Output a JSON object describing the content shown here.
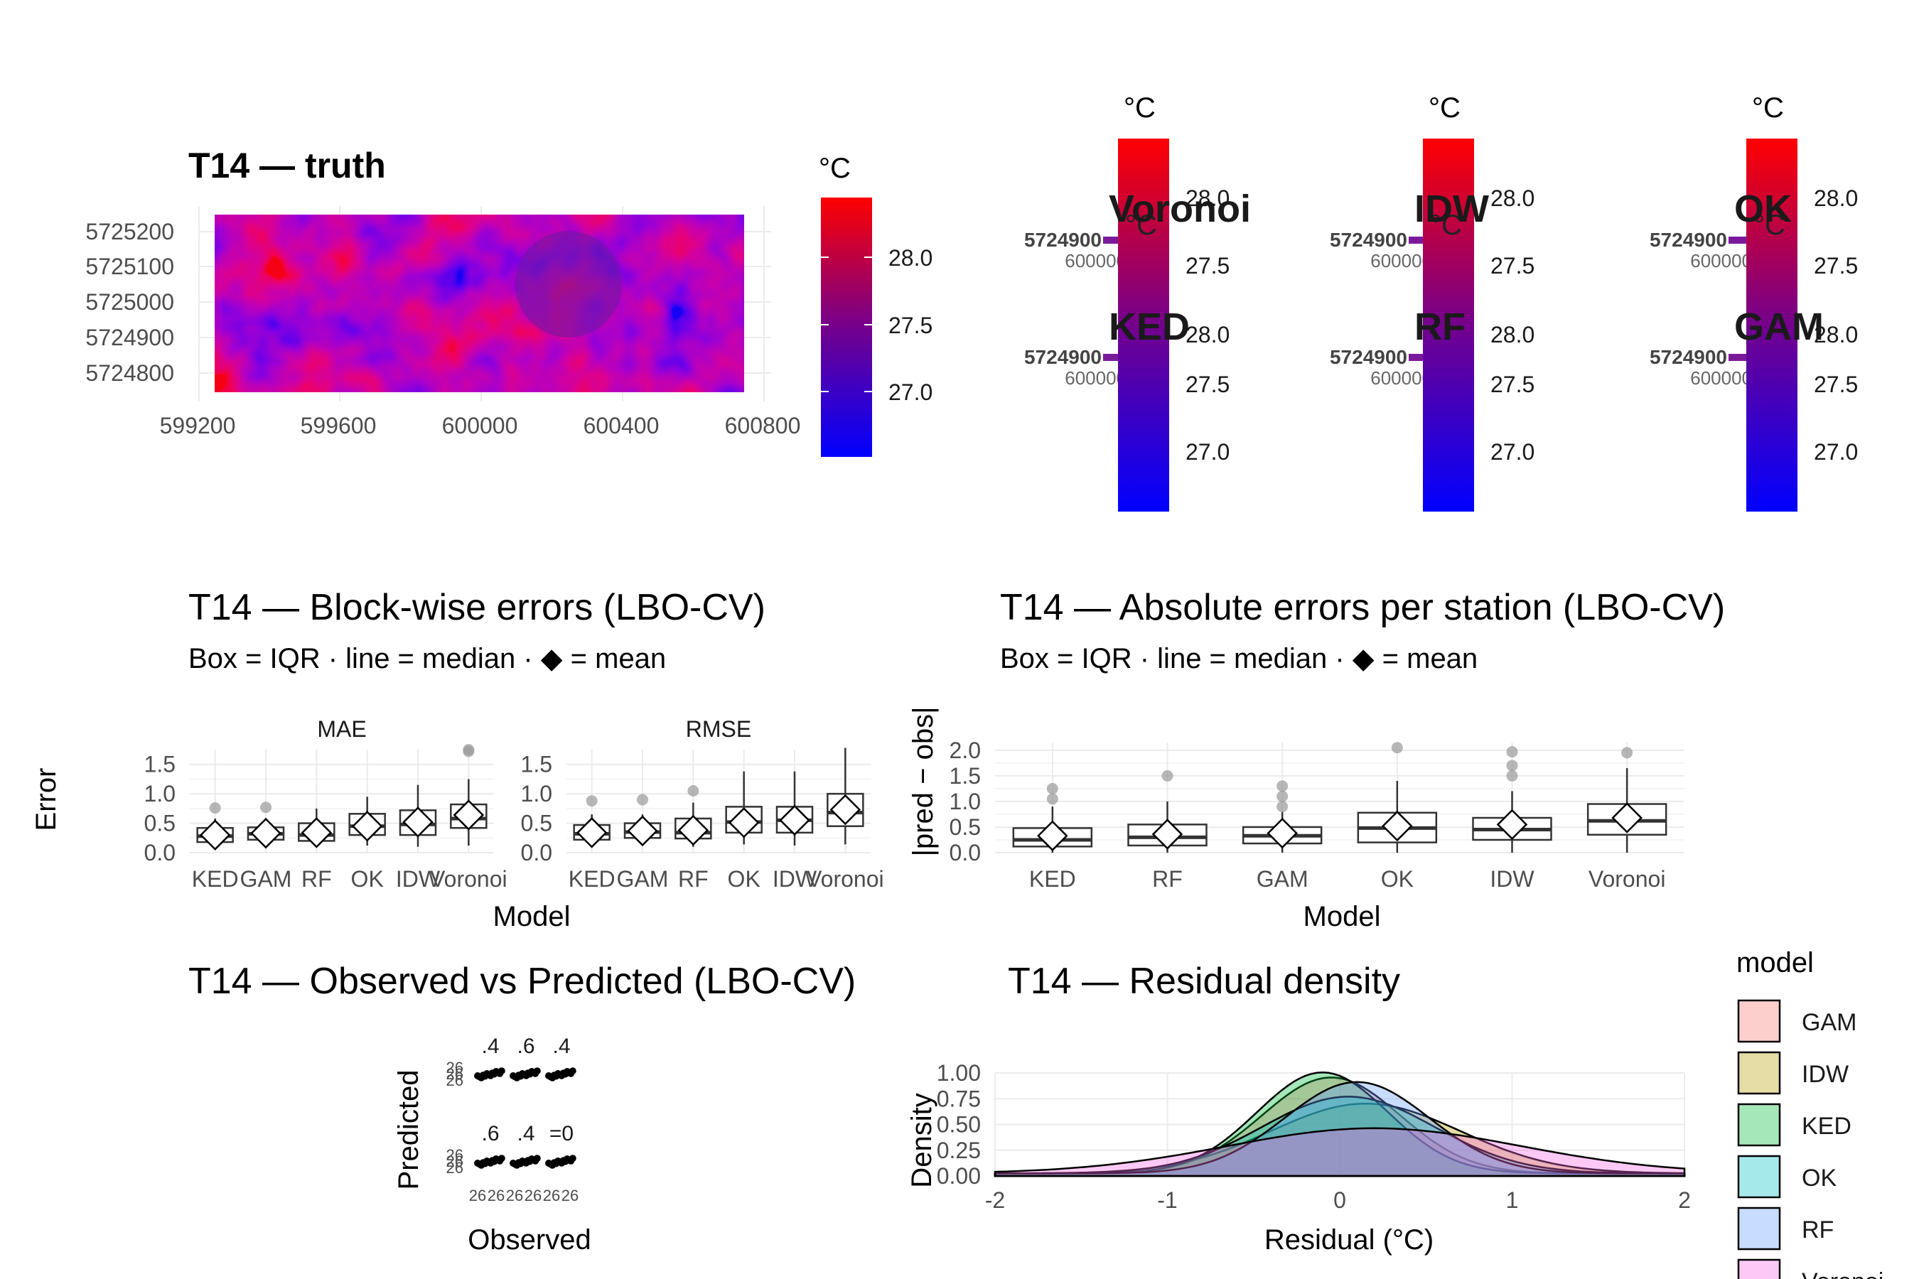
{
  "colors": {
    "low": "#0000ff",
    "mid": "#800080",
    "high": "#ff0000",
    "panel_grid": "#ebebeb",
    "text": "#1a1a1a",
    "axis_text": "#4d4d4d"
  },
  "truth": {
    "title": "T14 — truth",
    "legend_title": "°C",
    "legend_ticks": [
      "28.0",
      "27.5",
      "27.0"
    ],
    "y_ticks": [
      "5725200",
      "5725100",
      "5725000",
      "5724900",
      "5724800"
    ],
    "x_ticks": [
      "599200",
      "599600",
      "600000",
      "600400",
      "600800"
    ]
  },
  "mini_maps": {
    "legend_title": "°C",
    "legend_ticks": [
      "28.0",
      "27.5",
      "27.0"
    ],
    "panels": [
      {
        "title": "Voronoi"
      },
      {
        "title": "IDW"
      },
      {
        "title": "OK"
      },
      {
        "title": "KED"
      },
      {
        "title": "RF"
      },
      {
        "title": "GAM"
      }
    ],
    "y_tick_garbled": "5724900",
    "x_tick_garbled": "600000"
  },
  "chart_data": [
    {
      "type": "box",
      "title": "T14 — Block-wise errors (LBO-CV)",
      "subtitle_parts": [
        "Box = IQR · line = median · ",
        "◆",
        " = mean"
      ],
      "xlabel": "Model",
      "ylabel": "Error",
      "categories": [
        "KED",
        "GAM",
        "RF",
        "OK",
        "IDW",
        "Voronoi"
      ],
      "ylim": [
        0,
        1.75
      ],
      "y_ticks": [
        "0.0",
        "0.5",
        "1.0",
        "1.5"
      ],
      "facets": [
        {
          "name": "MAE",
          "boxes": [
            {
              "lo": 0.1,
              "q1": 0.18,
              "med": 0.28,
              "q3": 0.42,
              "hi": 0.58,
              "mean": 0.3,
              "outliers": [
                0.76
              ]
            },
            {
              "lo": 0.12,
              "q1": 0.22,
              "med": 0.32,
              "q3": 0.43,
              "hi": 0.55,
              "mean": 0.33,
              "outliers": [
                0.77
              ]
            },
            {
              "lo": 0.1,
              "q1": 0.2,
              "med": 0.3,
              "q3": 0.5,
              "hi": 0.75,
              "mean": 0.34,
              "outliers": []
            },
            {
              "lo": 0.12,
              "q1": 0.3,
              "med": 0.45,
              "q3": 0.66,
              "hi": 0.95,
              "mean": 0.45,
              "outliers": []
            },
            {
              "lo": 0.1,
              "q1": 0.3,
              "med": 0.48,
              "q3": 0.72,
              "hi": 1.15,
              "mean": 0.52,
              "outliers": []
            },
            {
              "lo": 0.12,
              "q1": 0.42,
              "med": 0.58,
              "q3": 0.82,
              "hi": 1.25,
              "mean": 0.64,
              "outliers": [
                1.72,
                1.78
              ]
            }
          ]
        },
        {
          "name": "RMSE",
          "boxes": [
            {
              "lo": 0.1,
              "q1": 0.22,
              "med": 0.32,
              "q3": 0.47,
              "hi": 0.65,
              "mean": 0.34,
              "outliers": [
                0.88
              ]
            },
            {
              "lo": 0.12,
              "q1": 0.25,
              "med": 0.35,
              "q3": 0.5,
              "hi": 0.65,
              "mean": 0.37,
              "outliers": [
                0.9
              ]
            },
            {
              "lo": 0.1,
              "q1": 0.24,
              "med": 0.34,
              "q3": 0.58,
              "hi": 0.85,
              "mean": 0.38,
              "outliers": [
                1.05
              ]
            },
            {
              "lo": 0.14,
              "q1": 0.34,
              "med": 0.52,
              "q3": 0.78,
              "hi": 1.38,
              "mean": 0.51,
              "outliers": []
            },
            {
              "lo": 0.12,
              "q1": 0.34,
              "med": 0.55,
              "q3": 0.78,
              "hi": 1.38,
              "mean": 0.55,
              "outliers": []
            },
            {
              "lo": 0.14,
              "q1": 0.45,
              "med": 0.68,
              "q3": 1.0,
              "hi": 1.78,
              "mean": 0.73,
              "outliers": []
            }
          ]
        }
      ]
    },
    {
      "type": "box",
      "title": "T14 — Absolute errors per station (LBO-CV)",
      "subtitle_parts": [
        "Box = IQR · line = median · ",
        "◆",
        " = mean"
      ],
      "xlabel": "Model",
      "ylabel": "|pred − obs|",
      "categories": [
        "KED",
        "RF",
        "GAM",
        "OK",
        "IDW",
        "Voronoi"
      ],
      "ylim": [
        0,
        2.15
      ],
      "y_ticks": [
        "0.0",
        "0.5",
        "1.0",
        "1.5",
        "2.0"
      ],
      "boxes": [
        {
          "lo": 0.0,
          "q1": 0.12,
          "med": 0.25,
          "q3": 0.48,
          "hi": 0.9,
          "mean": 0.33,
          "outliers": [
            1.05,
            1.25
          ]
        },
        {
          "lo": 0.0,
          "q1": 0.14,
          "med": 0.3,
          "q3": 0.55,
          "hi": 1.0,
          "mean": 0.36,
          "outliers": [
            1.5
          ]
        },
        {
          "lo": 0.0,
          "q1": 0.18,
          "med": 0.33,
          "q3": 0.5,
          "hi": 0.8,
          "mean": 0.38,
          "outliers": [
            0.9,
            1.1,
            1.3
          ]
        },
        {
          "lo": 0.0,
          "q1": 0.2,
          "med": 0.48,
          "q3": 0.78,
          "hi": 1.4,
          "mean": 0.52,
          "outliers": [
            2.05
          ]
        },
        {
          "lo": 0.0,
          "q1": 0.25,
          "med": 0.45,
          "q3": 0.68,
          "hi": 1.2,
          "mean": 0.55,
          "outliers": [
            1.5,
            1.7,
            1.97
          ]
        },
        {
          "lo": 0.0,
          "q1": 0.35,
          "med": 0.62,
          "q3": 0.95,
          "hi": 1.65,
          "mean": 0.68,
          "outliers": [
            1.95
          ]
        }
      ]
    },
    {
      "type": "scatter",
      "title": "T14 — Observed vs Predicted (LBO-CV)",
      "xlabel": "Observed",
      "ylabel": "Predicted",
      "facet_labels": [
        ".4",
        ".6",
        ".4",
        ".6",
        ".4",
        "=0"
      ],
      "tick_labels": "26"
    },
    {
      "type": "area",
      "title": "T14 — Residual density",
      "xlabel": "Residual (°C)",
      "ylabel": "Density",
      "xlim": [
        -2,
        2
      ],
      "ylim": [
        0,
        1.0
      ],
      "x_ticks": [
        "-2",
        "-1",
        "0",
        "1",
        "2"
      ],
      "y_ticks": [
        "0.00",
        "0.25",
        "0.50",
        "0.75",
        "1.00"
      ],
      "legend_title": "model",
      "legend_position": "right",
      "series": [
        {
          "name": "GAM",
          "color": "#f8766d",
          "mean": -0.05,
          "sd": 0.4
        },
        {
          "name": "IDW",
          "color": "#b79f00",
          "mean": 0.15,
          "sd": 0.55
        },
        {
          "name": "KED",
          "color": "#00ba38",
          "mean": -0.1,
          "sd": 0.38
        },
        {
          "name": "OK",
          "color": "#00bfc4",
          "mean": 0.05,
          "sd": 0.5
        },
        {
          "name": "RF",
          "color": "#619cff",
          "mean": 0.1,
          "sd": 0.42
        },
        {
          "name": "Voronoi",
          "color": "#f564e3",
          "mean": 0.2,
          "sd": 0.85
        }
      ]
    }
  ]
}
